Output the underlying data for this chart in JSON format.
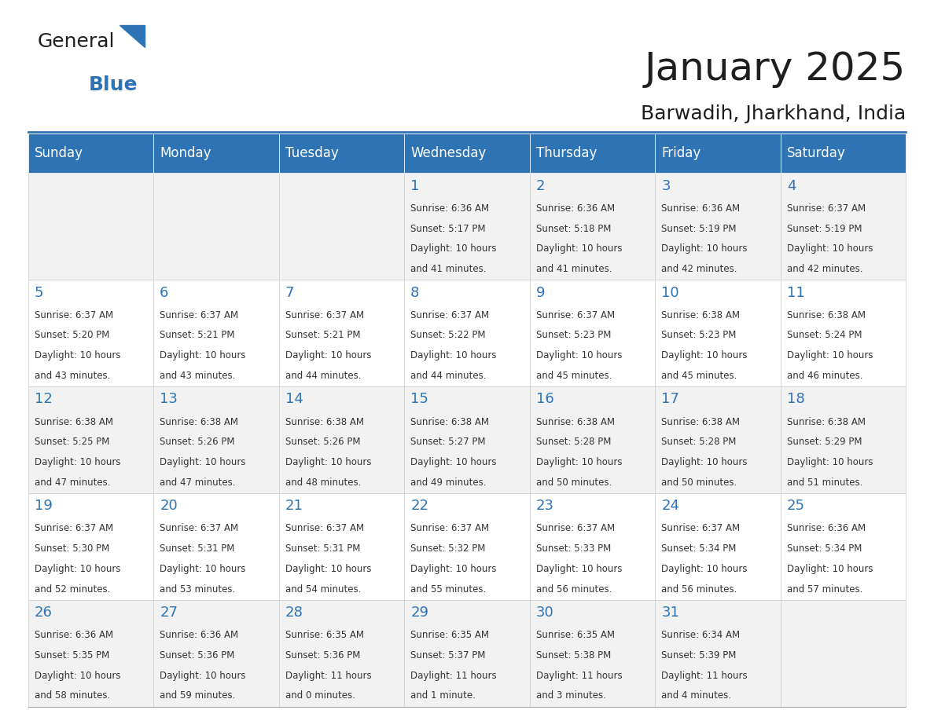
{
  "title": "January 2025",
  "subtitle": "Barwadih, Jharkhand, India",
  "header_bg": "#2E74B5",
  "header_text_color": "#FFFFFF",
  "cell_bg_light": "#F2F2F2",
  "cell_bg_white": "#FFFFFF",
  "day_headers": [
    "Sunday",
    "Monday",
    "Tuesday",
    "Wednesday",
    "Thursday",
    "Friday",
    "Saturday"
  ],
  "title_color": "#1F1F1F",
  "subtitle_color": "#1F1F1F",
  "day_number_color": "#2E74B5",
  "cell_text_color": "#333333",
  "logo_general_color": "#1F1F1F",
  "logo_blue_color": "#2E74B5",
  "weeks": [
    [
      {
        "day": null,
        "info": ""
      },
      {
        "day": null,
        "info": ""
      },
      {
        "day": null,
        "info": ""
      },
      {
        "day": 1,
        "info": "Sunrise: 6:36 AM\nSunset: 5:17 PM\nDaylight: 10 hours\nand 41 minutes."
      },
      {
        "day": 2,
        "info": "Sunrise: 6:36 AM\nSunset: 5:18 PM\nDaylight: 10 hours\nand 41 minutes."
      },
      {
        "day": 3,
        "info": "Sunrise: 6:36 AM\nSunset: 5:19 PM\nDaylight: 10 hours\nand 42 minutes."
      },
      {
        "day": 4,
        "info": "Sunrise: 6:37 AM\nSunset: 5:19 PM\nDaylight: 10 hours\nand 42 minutes."
      }
    ],
    [
      {
        "day": 5,
        "info": "Sunrise: 6:37 AM\nSunset: 5:20 PM\nDaylight: 10 hours\nand 43 minutes."
      },
      {
        "day": 6,
        "info": "Sunrise: 6:37 AM\nSunset: 5:21 PM\nDaylight: 10 hours\nand 43 minutes."
      },
      {
        "day": 7,
        "info": "Sunrise: 6:37 AM\nSunset: 5:21 PM\nDaylight: 10 hours\nand 44 minutes."
      },
      {
        "day": 8,
        "info": "Sunrise: 6:37 AM\nSunset: 5:22 PM\nDaylight: 10 hours\nand 44 minutes."
      },
      {
        "day": 9,
        "info": "Sunrise: 6:37 AM\nSunset: 5:23 PM\nDaylight: 10 hours\nand 45 minutes."
      },
      {
        "day": 10,
        "info": "Sunrise: 6:38 AM\nSunset: 5:23 PM\nDaylight: 10 hours\nand 45 minutes."
      },
      {
        "day": 11,
        "info": "Sunrise: 6:38 AM\nSunset: 5:24 PM\nDaylight: 10 hours\nand 46 minutes."
      }
    ],
    [
      {
        "day": 12,
        "info": "Sunrise: 6:38 AM\nSunset: 5:25 PM\nDaylight: 10 hours\nand 47 minutes."
      },
      {
        "day": 13,
        "info": "Sunrise: 6:38 AM\nSunset: 5:26 PM\nDaylight: 10 hours\nand 47 minutes."
      },
      {
        "day": 14,
        "info": "Sunrise: 6:38 AM\nSunset: 5:26 PM\nDaylight: 10 hours\nand 48 minutes."
      },
      {
        "day": 15,
        "info": "Sunrise: 6:38 AM\nSunset: 5:27 PM\nDaylight: 10 hours\nand 49 minutes."
      },
      {
        "day": 16,
        "info": "Sunrise: 6:38 AM\nSunset: 5:28 PM\nDaylight: 10 hours\nand 50 minutes."
      },
      {
        "day": 17,
        "info": "Sunrise: 6:38 AM\nSunset: 5:28 PM\nDaylight: 10 hours\nand 50 minutes."
      },
      {
        "day": 18,
        "info": "Sunrise: 6:38 AM\nSunset: 5:29 PM\nDaylight: 10 hours\nand 51 minutes."
      }
    ],
    [
      {
        "day": 19,
        "info": "Sunrise: 6:37 AM\nSunset: 5:30 PM\nDaylight: 10 hours\nand 52 minutes."
      },
      {
        "day": 20,
        "info": "Sunrise: 6:37 AM\nSunset: 5:31 PM\nDaylight: 10 hours\nand 53 minutes."
      },
      {
        "day": 21,
        "info": "Sunrise: 6:37 AM\nSunset: 5:31 PM\nDaylight: 10 hours\nand 54 minutes."
      },
      {
        "day": 22,
        "info": "Sunrise: 6:37 AM\nSunset: 5:32 PM\nDaylight: 10 hours\nand 55 minutes."
      },
      {
        "day": 23,
        "info": "Sunrise: 6:37 AM\nSunset: 5:33 PM\nDaylight: 10 hours\nand 56 minutes."
      },
      {
        "day": 24,
        "info": "Sunrise: 6:37 AM\nSunset: 5:34 PM\nDaylight: 10 hours\nand 56 minutes."
      },
      {
        "day": 25,
        "info": "Sunrise: 6:36 AM\nSunset: 5:34 PM\nDaylight: 10 hours\nand 57 minutes."
      }
    ],
    [
      {
        "day": 26,
        "info": "Sunrise: 6:36 AM\nSunset: 5:35 PM\nDaylight: 10 hours\nand 58 minutes."
      },
      {
        "day": 27,
        "info": "Sunrise: 6:36 AM\nSunset: 5:36 PM\nDaylight: 10 hours\nand 59 minutes."
      },
      {
        "day": 28,
        "info": "Sunrise: 6:35 AM\nSunset: 5:36 PM\nDaylight: 11 hours\nand 0 minutes."
      },
      {
        "day": 29,
        "info": "Sunrise: 6:35 AM\nSunset: 5:37 PM\nDaylight: 11 hours\nand 1 minute."
      },
      {
        "day": 30,
        "info": "Sunrise: 6:35 AM\nSunset: 5:38 PM\nDaylight: 11 hours\nand 3 minutes."
      },
      {
        "day": 31,
        "info": "Sunrise: 6:34 AM\nSunset: 5:39 PM\nDaylight: 11 hours\nand 4 minutes."
      },
      {
        "day": null,
        "info": ""
      }
    ]
  ]
}
